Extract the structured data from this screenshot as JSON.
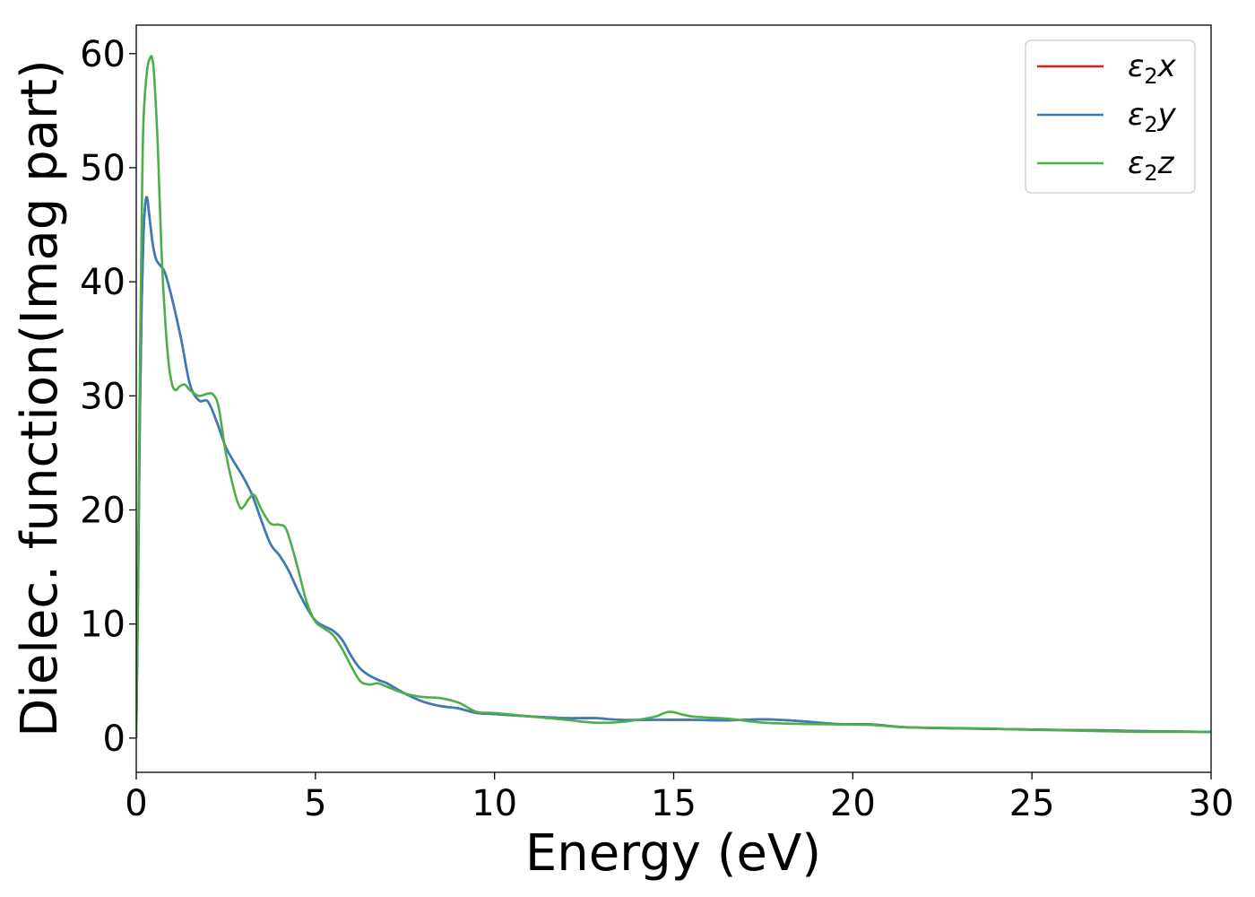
{
  "chart_data": {
    "type": "line",
    "title": "",
    "xlabel": "Energy (eV)",
    "ylabel": "Dielec. function(Imag part)",
    "xlim": [
      0,
      30
    ],
    "ylim": [
      -3,
      62.5
    ],
    "xticks": [
      "0",
      "5",
      "10",
      "15",
      "20",
      "25",
      "30"
    ],
    "yticks": [
      "0",
      "10",
      "20",
      "30",
      "40",
      "50",
      "60"
    ],
    "grid": false,
    "legend_position": "top-right",
    "series": [
      {
        "name": "ε₂x",
        "legend_base": "ε",
        "legend_sub": "2",
        "legend_axis": "x",
        "color": "#e41a1c",
        "x": [
          0,
          0.05,
          0.1,
          0.15,
          0.2,
          0.25,
          0.3,
          0.35,
          0.45,
          0.55,
          0.65,
          0.8,
          1.0,
          1.25,
          1.5,
          1.75,
          2.0,
          2.25,
          2.5,
          2.75,
          3.0,
          3.25,
          3.5,
          3.75,
          4.0,
          4.25,
          4.5,
          4.75,
          5.0,
          5.25,
          5.5,
          5.75,
          6.0,
          6.25,
          6.5,
          6.75,
          7.0,
          7.5,
          8.0,
          8.5,
          9.0,
          9.5,
          10,
          11,
          12,
          12.8,
          13.5,
          14.5,
          15.5,
          16.5,
          17.5,
          18.5,
          19.5,
          20.5,
          21.5,
          23,
          24,
          25,
          26,
          27,
          28,
          29,
          30
        ],
        "y": [
          0,
          13,
          28,
          38,
          44,
          46.8,
          47.4,
          46.2,
          43.5,
          42,
          41.5,
          40.8,
          38.5,
          35,
          31,
          29.6,
          29.5,
          27.7,
          25.5,
          24.1,
          22.8,
          21.2,
          19,
          17,
          16,
          14.7,
          13,
          11.5,
          10.3,
          9.8,
          9.4,
          8.6,
          7.2,
          6.1,
          5.5,
          5.1,
          4.8,
          3.9,
          3.2,
          2.8,
          2.6,
          2.2,
          2.1,
          1.9,
          1.75,
          1.75,
          1.6,
          1.6,
          1.6,
          1.55,
          1.65,
          1.5,
          1.25,
          1.2,
          0.95,
          0.85,
          0.8,
          0.75,
          0.7,
          0.68,
          0.62,
          0.58,
          0.55
        ]
      },
      {
        "name": "ε₂y",
        "legend_base": "ε",
        "legend_sub": "2",
        "legend_axis": "y",
        "color": "#377eb8",
        "x": [
          0,
          0.05,
          0.1,
          0.15,
          0.2,
          0.25,
          0.3,
          0.35,
          0.45,
          0.55,
          0.65,
          0.8,
          1.0,
          1.25,
          1.5,
          1.75,
          2.0,
          2.25,
          2.5,
          2.75,
          3.0,
          3.25,
          3.5,
          3.75,
          4.0,
          4.25,
          4.5,
          4.75,
          5.0,
          5.25,
          5.5,
          5.75,
          6.0,
          6.25,
          6.5,
          6.75,
          7.0,
          7.5,
          8.0,
          8.5,
          9.0,
          9.5,
          10,
          11,
          12,
          12.8,
          13.5,
          14.5,
          15.5,
          16.5,
          17.5,
          18.5,
          19.5,
          20.5,
          21.5,
          23,
          24,
          25,
          26,
          27,
          28,
          29,
          30
        ],
        "y": [
          0,
          13,
          28,
          38,
          44,
          46.8,
          47.4,
          46.2,
          43.5,
          42,
          41.5,
          40.8,
          38.5,
          35,
          31,
          29.6,
          29.5,
          27.7,
          25.5,
          24.1,
          22.8,
          21.2,
          19,
          17,
          16,
          14.7,
          13,
          11.5,
          10.3,
          9.8,
          9.4,
          8.6,
          7.2,
          6.1,
          5.5,
          5.1,
          4.8,
          3.9,
          3.2,
          2.8,
          2.6,
          2.2,
          2.1,
          1.9,
          1.75,
          1.75,
          1.6,
          1.6,
          1.6,
          1.55,
          1.65,
          1.5,
          1.25,
          1.2,
          0.95,
          0.85,
          0.8,
          0.75,
          0.7,
          0.68,
          0.62,
          0.58,
          0.55
        ]
      },
      {
        "name": "ε₂z",
        "legend_base": "ε",
        "legend_sub": "2",
        "legend_axis": "z",
        "color": "#4daf4a",
        "x": [
          0,
          0.05,
          0.1,
          0.15,
          0.2,
          0.3,
          0.4,
          0.45,
          0.5,
          0.6,
          0.7,
          0.8,
          0.9,
          1.0,
          1.1,
          1.2,
          1.35,
          1.5,
          1.75,
          2.0,
          2.15,
          2.3,
          2.5,
          2.75,
          2.9,
          3.0,
          3.15,
          3.3,
          3.5,
          3.75,
          4.0,
          4.2,
          4.5,
          4.75,
          5.0,
          5.25,
          5.5,
          5.75,
          6.0,
          6.25,
          6.5,
          6.75,
          7.0,
          7.5,
          8.0,
          8.5,
          9.0,
          9.5,
          10,
          11,
          12,
          12.8,
          13.5,
          14,
          14.5,
          14.9,
          15.5,
          16.5,
          17.5,
          18.5,
          19.5,
          20.5,
          21.5,
          23,
          24,
          25,
          26,
          27,
          28,
          29,
          30
        ],
        "y": [
          0,
          15,
          32,
          45,
          54,
          58.5,
          59.7,
          59.5,
          58,
          52,
          43,
          37,
          33,
          31,
          30.5,
          30.8,
          31,
          30.5,
          30,
          30.2,
          30.1,
          29,
          25,
          21.5,
          20.2,
          20.3,
          21,
          21.3,
          20,
          18.8,
          18.7,
          18.2,
          15,
          12,
          10.2,
          9.6,
          9,
          7.8,
          6.3,
          5,
          4.7,
          4.8,
          4.5,
          3.9,
          3.6,
          3.5,
          3.1,
          2.3,
          2.2,
          1.9,
          1.6,
          1.35,
          1.4,
          1.6,
          1.9,
          2.3,
          1.9,
          1.7,
          1.35,
          1.25,
          1.2,
          1.15,
          0.95,
          0.88,
          0.82,
          0.72,
          0.67,
          0.6,
          0.55,
          0.55,
          0.55
        ]
      }
    ]
  }
}
